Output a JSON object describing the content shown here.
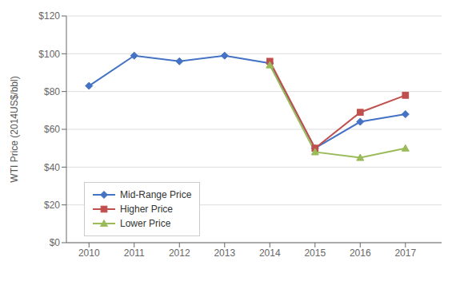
{
  "chart_data": {
    "type": "line",
    "x": [
      2010,
      2011,
      2012,
      2013,
      2014,
      2015,
      2016,
      2017
    ],
    "series": [
      {
        "name": "Mid-Range Price",
        "color": "#4472C4",
        "marker": "diamond",
        "values": [
          83,
          99,
          96,
          99,
          95,
          50,
          64,
          68
        ]
      },
      {
        "name": "Higher Price",
        "color": "#C0504D",
        "marker": "square",
        "values": [
          null,
          null,
          null,
          null,
          96,
          50,
          69,
          78
        ]
      },
      {
        "name": "Lower Price",
        "color": "#9BBB59",
        "marker": "triangle",
        "values": [
          null,
          null,
          null,
          null,
          94,
          48,
          45,
          50
        ]
      }
    ],
    "ylabel": "WTI Price (2014US$/bbl)",
    "xlim": [
      2009.5,
      2017.8
    ],
    "xticks": [
      2010,
      2011,
      2012,
      2013,
      2014,
      2015,
      2016,
      2017
    ],
    "ylim": [
      0,
      120
    ],
    "yticks": [
      {
        "value": 0,
        "label": "$0"
      },
      {
        "value": 20,
        "label": "$20"
      },
      {
        "value": 40,
        "label": "$40"
      },
      {
        "value": 60,
        "label": "$60"
      },
      {
        "value": 80,
        "label": "$80"
      },
      {
        "value": 100,
        "label": "$100"
      },
      {
        "value": 120,
        "label": "$120"
      }
    ],
    "grid": true,
    "legend": "lower left"
  }
}
